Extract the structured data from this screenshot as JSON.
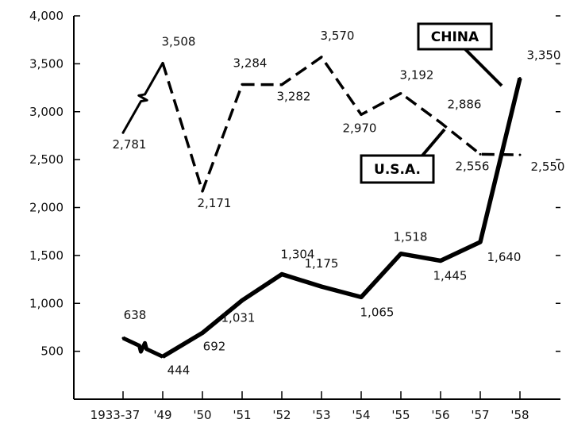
{
  "chart_data": {
    "type": "line",
    "title": "",
    "xlabel": "",
    "ylabel": "",
    "categories": [
      "1933-37",
      "'49",
      "'50",
      "'51",
      "'52",
      "'53",
      "'54",
      "'55",
      "'56",
      "'57",
      "'58"
    ],
    "yticks": [
      "500",
      "1,000",
      "1,500",
      "2,000",
      "2,500",
      "3,000",
      "3,500",
      "4,000"
    ],
    "ylim": [
      0,
      4000
    ],
    "grid": false,
    "series": [
      {
        "name": "U.S.A.",
        "style": "dashed",
        "color": "#000000",
        "values": [
          2781,
          3508,
          2171,
          3284,
          3282,
          3570,
          2970,
          3192,
          2886,
          2556,
          2550
        ],
        "labels": [
          "2,781",
          "3,508",
          "2,171",
          "3,284",
          "3,282",
          "3,570",
          "2,970",
          "3,192",
          "2,886",
          "2,556",
          "2,550"
        ]
      },
      {
        "name": "CHINA",
        "style": "solid",
        "color": "#000000",
        "values": [
          638,
          444,
          692,
          1031,
          1304,
          1175,
          1065,
          1518,
          1445,
          1640,
          3350
        ],
        "labels": [
          "638",
          "444",
          "692",
          "1,031",
          "1,304",
          "1,175",
          "1,065",
          "1,518",
          "1,445",
          "1,640",
          "3,350"
        ]
      }
    ]
  }
}
